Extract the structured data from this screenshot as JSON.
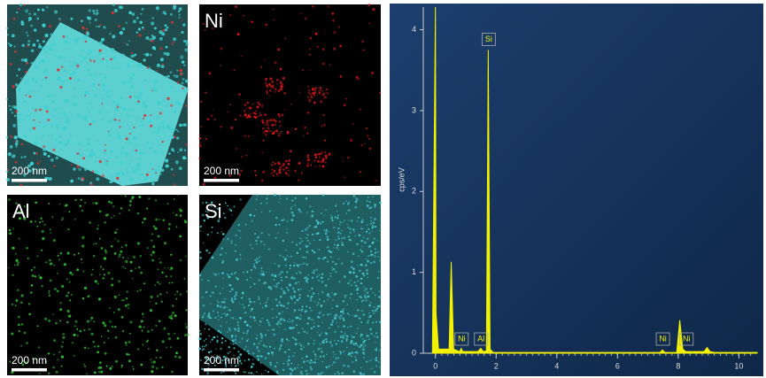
{
  "panels": [
    {
      "scale_bar": "200 nm"
    },
    {
      "label": "Ni",
      "scale_bar": "200 nm"
    },
    {
      "label": "Al",
      "scale_bar": "200 nm"
    },
    {
      "label": "Si",
      "scale_bar": "200 nm"
    }
  ],
  "chart_data": {
    "type": "area",
    "y_label": "cps/eV",
    "x": [
      -0.1,
      0.0,
      0.02,
      0.1,
      0.45,
      0.52,
      0.6,
      0.8,
      0.85,
      0.9,
      1.4,
      1.49,
      1.58,
      1.68,
      1.74,
      1.8,
      1.9,
      7.4,
      7.48,
      7.56,
      7.95,
      8.05,
      8.15,
      8.25,
      8.3,
      8.85,
      8.95,
      9.05,
      9.2,
      10.6
    ],
    "series": [
      {
        "color": "#f2f200",
        "values": [
          0,
          4.3,
          0.5,
          0.05,
          0.05,
          1.13,
          0.05,
          0.02,
          0.06,
          0.02,
          0.02,
          0.06,
          0.02,
          0.03,
          3.75,
          0.05,
          0.01,
          0.01,
          0.04,
          0.01,
          0.01,
          0.41,
          0.05,
          0.02,
          0.02,
          0.02,
          0.07,
          0.02,
          0.01,
          0.01
        ]
      }
    ],
    "annotations": [
      {
        "x": 0.85,
        "text": "Ni"
      },
      {
        "x": 1.49,
        "text": "Al"
      },
      {
        "x": 1.74,
        "text": "Si"
      },
      {
        "x": 7.48,
        "text": "Ni"
      },
      {
        "x": 8.26,
        "text": "Ni"
      }
    ],
    "xlim": [
      -0.4,
      10.6
    ],
    "ylim": [
      0,
      4.28
    ],
    "xticks": [
      0,
      2,
      4,
      6,
      8,
      10
    ],
    "yticks": [
      0,
      1,
      2,
      3,
      4
    ]
  }
}
